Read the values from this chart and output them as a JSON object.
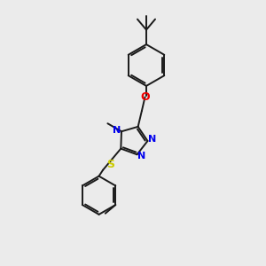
{
  "bg_color": "#ebebeb",
  "bond_color": "#1a1a1a",
  "N_color": "#0000ee",
  "O_color": "#ee0000",
  "S_color": "#cccc00",
  "line_width": 1.4,
  "figsize": [
    3.0,
    3.0
  ],
  "dpi": 100,
  "xlim": [
    0,
    10
  ],
  "ylim": [
    0,
    10
  ]
}
